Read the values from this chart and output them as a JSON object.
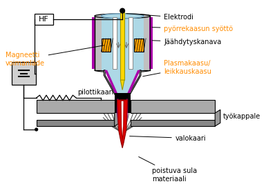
{
  "bg_color": "#ffffff",
  "labels": {
    "elektrodi": "Elektrodi",
    "pyorr": "pyörrekaasun syöttö",
    "jaahdytys": "Jäähdytyskanava",
    "plasma": "Plasmakaasu/\nleikkauskaasu",
    "pilotti": "pilottikaari",
    "magneetti": "Magneetti\nvoimanläde",
    "tyokappale": "työkappale",
    "valokaari": "valokaari",
    "poistuva": "poistuva sula\nmateriaali",
    "hf": "HF"
  },
  "orange": "#FF8C00",
  "black": "#000000",
  "yellow": "#FFD700",
  "red": "#DD0000",
  "purple": "#AA00AA",
  "lightblue": "#ADD8E6",
  "magnet_orange": "#FFA500",
  "gray_body": "#C0C0C0",
  "gray_dark": "#888888",
  "gray_wp": "#AAAAAA",
  "gray_wp_side": "#888888",
  "white": "#ffffff"
}
